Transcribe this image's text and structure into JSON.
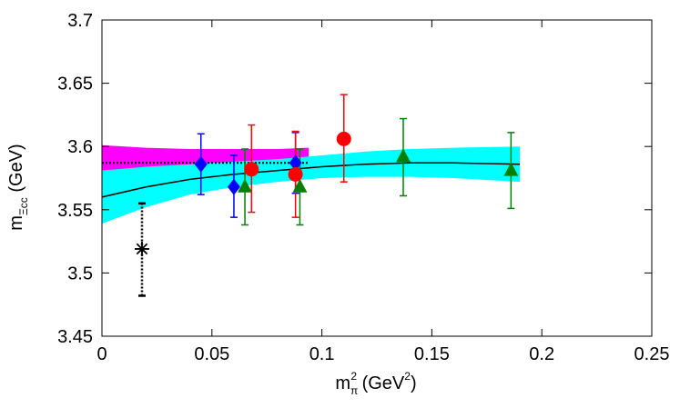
{
  "chart_data": {
    "type": "scatter",
    "xlim": [
      0,
      0.25
    ],
    "ylim": [
      3.45,
      3.7
    ],
    "x_ticks": [
      "0",
      "0.05",
      "0.1",
      "0.15",
      "0.2",
      "0.25"
    ],
    "y_ticks": [
      "3.45",
      "3.5",
      "3.55",
      "3.6",
      "3.65",
      "3.7"
    ],
    "xlabel": {
      "base": "m",
      "sub": "π",
      "sup": "2",
      "unit_open": " (GeV",
      "unit_sup": "2",
      "unit_close": ")"
    },
    "ylabel": {
      "base": "m",
      "sub": "Ξcc",
      "unit": " (GeV)"
    },
    "grid": false,
    "series": [
      {
        "marker": "diamond",
        "color": "#0000ff",
        "points": [
          {
            "x": 0.045,
            "y": 3.586,
            "lo": 3.562,
            "hi": 3.61
          },
          {
            "x": 0.06,
            "y": 3.568,
            "lo": 3.544,
            "hi": 3.593
          },
          {
            "x": 0.088,
            "y": 3.587,
            "lo": 3.563,
            "hi": 3.611
          }
        ]
      },
      {
        "marker": "circle",
        "color": "#ff0000",
        "points": [
          {
            "x": 0.068,
            "y": 3.582,
            "lo": 3.548,
            "hi": 3.617
          },
          {
            "x": 0.088,
            "y": 3.578,
            "lo": 3.544,
            "hi": 3.612
          },
          {
            "x": 0.11,
            "y": 3.606,
            "lo": 3.572,
            "hi": 3.641
          }
        ]
      },
      {
        "marker": "triangle",
        "color": "#008000",
        "points": [
          {
            "x": 0.065,
            "y": 3.568,
            "lo": 3.538,
            "hi": 3.598
          },
          {
            "x": 0.09,
            "y": 3.568,
            "lo": 3.538,
            "hi": 3.598
          },
          {
            "x": 0.137,
            "y": 3.592,
            "lo": 3.561,
            "hi": 3.622
          },
          {
            "x": 0.186,
            "y": 3.581,
            "lo": 3.551,
            "hi": 3.611
          }
        ]
      }
    ],
    "physical_point": {
      "x": 0.0182,
      "y": 3.519,
      "lo": 3.482,
      "hi": 3.555,
      "marker": "asterisk",
      "color": "#000000"
    },
    "bands": [
      {
        "color": "#ff00ff",
        "x": [
          0.0,
          0.02,
          0.04,
          0.06,
          0.08,
          0.094
        ],
        "center": [
          3.587,
          3.587,
          3.587,
          3.587,
          3.587,
          3.587
        ],
        "upper": [
          3.601,
          3.599,
          3.598,
          3.598,
          3.598,
          3.599
        ],
        "lower": [
          3.573,
          3.575,
          3.577,
          3.577,
          3.577,
          3.576
        ]
      },
      {
        "color": "#00ffff",
        "x": [
          0.0,
          0.02,
          0.04,
          0.06,
          0.08,
          0.1,
          0.12,
          0.14,
          0.16,
          0.19
        ],
        "center": [
          3.56,
          3.568,
          3.574,
          3.578,
          3.581,
          3.584,
          3.586,
          3.587,
          3.587,
          3.586
        ],
        "upper": [
          3.581,
          3.584,
          3.586,
          3.588,
          3.59,
          3.593,
          3.596,
          3.598,
          3.599,
          3.6
        ],
        "lower": [
          3.539,
          3.552,
          3.562,
          3.568,
          3.572,
          3.575,
          3.576,
          3.576,
          3.575,
          3.572
        ]
      }
    ],
    "fit_lines": [
      {
        "style": "solid",
        "color": "#000000",
        "x": [
          0.0,
          0.02,
          0.04,
          0.06,
          0.08,
          0.1,
          0.12,
          0.14,
          0.16,
          0.19
        ],
        "y": [
          3.56,
          3.568,
          3.574,
          3.578,
          3.581,
          3.584,
          3.586,
          3.587,
          3.587,
          3.586
        ]
      },
      {
        "style": "dotted",
        "color": "#000000",
        "x": [
          0.0,
          0.094
        ],
        "y": [
          3.587,
          3.587
        ]
      }
    ]
  }
}
